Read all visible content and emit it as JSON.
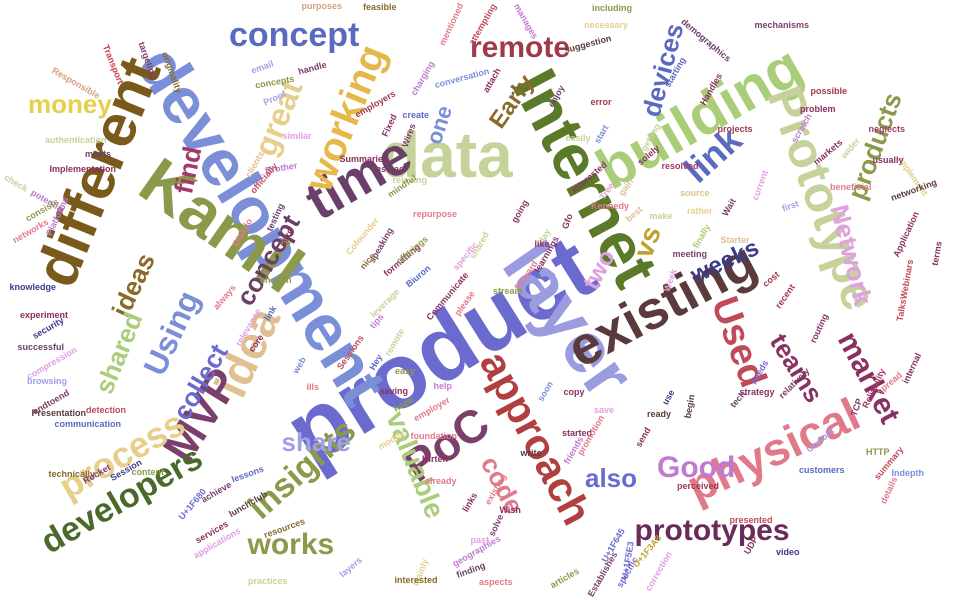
{
  "words": [
    {
      "text": "product",
      "color": "#6b6bcf"
    },
    {
      "text": "layer",
      "color": "#9b9be0"
    },
    {
      "text": "Internet",
      "color": "#5a7a2a"
    },
    {
      "text": "data",
      "color": "#c5d39a"
    },
    {
      "text": "development",
      "color": "#7a8fd8"
    },
    {
      "text": "Kamil",
      "color": "#8a9a4a"
    },
    {
      "text": "different",
      "color": "#7a5a1a"
    },
    {
      "text": "building",
      "color": "#aacd7a"
    },
    {
      "text": "Prototype",
      "color": "#c5d39a"
    },
    {
      "text": "time",
      "color": "#6a3f6a"
    },
    {
      "text": "existing",
      "color": "#5a3a3a"
    },
    {
      "text": "physical",
      "color": "#e07a8a"
    },
    {
      "text": "approach",
      "color": "#b04040"
    },
    {
      "text": "PoC",
      "color": "#7a3f6a"
    },
    {
      "text": "idea",
      "color": "#e0c090"
    },
    {
      "text": "MVP",
      "color": "#7a3f6a"
    },
    {
      "text": "developers",
      "color": "#4a6a2a"
    },
    {
      "text": "prototypes",
      "color": "#6a2a5a"
    },
    {
      "text": "process",
      "color": "#e6cf8a"
    },
    {
      "text": "market",
      "color": "#8a3060"
    },
    {
      "text": "Network",
      "color": "#e0a0e0"
    },
    {
      "text": "products",
      "color": "#8a9a4a"
    },
    {
      "text": "working",
      "color": "#e6b84a"
    },
    {
      "text": "concept",
      "color": "#5a6ac0"
    },
    {
      "text": "remote",
      "color": "#a03a4a"
    },
    {
      "text": "devices",
      "color": "#5a6ac0"
    },
    {
      "text": "link",
      "color": "#5a6ac0"
    },
    {
      "text": "Used",
      "color": "#c04a5a"
    },
    {
      "text": "Good",
      "color": "#c07ad0"
    },
    {
      "text": "insights",
      "color": "#8a9a4a"
    },
    {
      "text": "valuable",
      "color": "#aacd7a"
    },
    {
      "text": "code",
      "color": "#e07a8a"
    },
    {
      "text": "share",
      "color": "#a0a0e6"
    },
    {
      "text": "collect",
      "color": "#6b6bcf"
    },
    {
      "text": "Using",
      "color": "#7a8fd8"
    },
    {
      "text": "works",
      "color": "#8a9a4a"
    },
    {
      "text": "also",
      "color": "#6b6bcf"
    },
    {
      "text": "money",
      "color": "#e6cf4a"
    },
    {
      "text": "great",
      "color": "#e6cf8a"
    },
    {
      "text": "find",
      "color": "#a03a6a"
    },
    {
      "text": "ideas",
      "color": "#8a6a2a"
    },
    {
      "text": "shared",
      "color": "#aacd7a"
    },
    {
      "text": "weeks",
      "color": "#3a3a8a"
    },
    {
      "text": "teams",
      "color": "#8a3060"
    },
    {
      "text": "two",
      "color": "#e0a0e0"
    },
    {
      "text": "one",
      "color": "#7a8fd8"
    },
    {
      "text": "Early",
      "color": "#8a6a2a"
    },
    {
      "text": "vs",
      "color": "#c0a030"
    },
    {
      "text": "concept",
      "color": "#6a3f6a"
    },
    {
      "text": "Responsible",
      "color": "#d4a080"
    },
    {
      "text": "Transport",
      "color": "#c04040"
    },
    {
      "text": "targeting",
      "color": "#7a3f6a"
    },
    {
      "text": "originality",
      "color": "#8a6a2a"
    },
    {
      "text": "email",
      "color": "#a0a0e6"
    },
    {
      "text": "handle",
      "color": "#7a3f6a"
    },
    {
      "text": "concepts",
      "color": "#8a9a4a"
    },
    {
      "text": "Proof",
      "color": "#a0a0e6"
    },
    {
      "text": "purposes",
      "color": "#d4a080"
    },
    {
      "text": "feasible",
      "color": "#8a6a2a"
    },
    {
      "text": "mentioned",
      "color": "#e07a8a"
    },
    {
      "text": "attempting",
      "color": "#c04a5a"
    },
    {
      "text": "manages",
      "color": "#c07ad0"
    },
    {
      "text": "including",
      "color": "#8a9a4a"
    },
    {
      "text": "necessary",
      "color": "#e6cf8a"
    },
    {
      "text": "demographics",
      "color": "#6a3f6a"
    },
    {
      "text": "mechanisms",
      "color": "#7a3f6a"
    },
    {
      "text": "suggestion",
      "color": "#5a3a3a"
    },
    {
      "text": "conversation",
      "color": "#7a8fd8"
    },
    {
      "text": "charging",
      "color": "#c07ad0"
    },
    {
      "text": "attach",
      "color": "#8a3060"
    },
    {
      "text": "enjoy",
      "color": "#6a3f6a"
    },
    {
      "text": "starting",
      "color": "#5a6ac0"
    },
    {
      "text": "Handles",
      "color": "#8a3060"
    },
    {
      "text": "error",
      "color": "#a03a4a"
    },
    {
      "text": "authentication",
      "color": "#c5d39a"
    },
    {
      "text": "meets",
      "color": "#6a3f6a"
    },
    {
      "text": "Implementation",
      "color": "#8a3060"
    },
    {
      "text": "check",
      "color": "#c5d39a"
    },
    {
      "text": "potential",
      "color": "#c07ad0"
    },
    {
      "text": "Platforms",
      "color": "#c07ad0"
    },
    {
      "text": "consists",
      "color": "#8a9a4a"
    },
    {
      "text": "networks",
      "color": "#e07a8a"
    },
    {
      "text": "knowledge",
      "color": "#3a3a8a"
    },
    {
      "text": "experiment",
      "color": "#8a3060"
    },
    {
      "text": "security",
      "color": "#3a3a8a"
    },
    {
      "text": "successful",
      "color": "#6a3f6a"
    },
    {
      "text": "compression",
      "color": "#e0a0e0"
    },
    {
      "text": "browsing",
      "color": "#a0a0e6"
    },
    {
      "text": "endtoend",
      "color": "#7a3f6a"
    },
    {
      "text": "Presentation",
      "color": "#5a3a3a"
    },
    {
      "text": "communication",
      "color": "#5a6ac0"
    },
    {
      "text": "technically",
      "color": "#8a6a2a"
    },
    {
      "text": "Session",
      "color": "#3a3a8a"
    },
    {
      "text": "Rocket",
      "color": "#7a3f6a"
    },
    {
      "text": "content",
      "color": "#8a9a4a"
    },
    {
      "text": "detection",
      "color": "#c04a5a"
    },
    {
      "text": "lessons",
      "color": "#5a6ac0"
    },
    {
      "text": "achieve",
      "color": "#7a3f6a"
    },
    {
      "text": "lunchclub",
      "color": "#5a3a3a"
    },
    {
      "text": "resources",
      "color": "#8a6a2a"
    },
    {
      "text": "services",
      "color": "#8a3060"
    },
    {
      "text": "applications",
      "color": "#e0a0e0"
    },
    {
      "text": "practices",
      "color": "#c5d39a"
    },
    {
      "text": "layers",
      "color": "#a0a0e6"
    },
    {
      "text": "Mainly",
      "color": "#e6cf8a"
    },
    {
      "text": "geographies",
      "color": "#c07ad0"
    },
    {
      "text": "interested",
      "color": "#8a6a2a"
    },
    {
      "text": "finding",
      "color": "#6a3f6a"
    },
    {
      "text": "aspects",
      "color": "#e07a8a"
    },
    {
      "text": "articles",
      "color": "#8a9a4a"
    },
    {
      "text": "Establishes",
      "color": "#7a3f6a"
    },
    {
      "text": "correction",
      "color": "#e0a0e0"
    },
    {
      "text": "specific",
      "color": "#6b6bcf"
    },
    {
      "text": "video",
      "color": "#3a3a8a"
    },
    {
      "text": "UDP",
      "color": "#8a3060"
    },
    {
      "text": "presented",
      "color": "#c04a5a"
    },
    {
      "text": "perceived",
      "color": "#a03a4a"
    },
    {
      "text": "customers",
      "color": "#5a6ac0"
    },
    {
      "text": "HTTP",
      "color": "#8a9a4a"
    },
    {
      "text": "summary",
      "color": "#c04a5a"
    },
    {
      "text": "details",
      "color": "#e07a8a"
    },
    {
      "text": "Indepth",
      "color": "#7a8fd8"
    },
    {
      "text": "Unwork",
      "color": "#a0a0e6"
    },
    {
      "text": "TCP",
      "color": "#7a3f6a"
    },
    {
      "text": "Reliability",
      "color": "#a03a6a"
    },
    {
      "text": "spread",
      "color": "#e07a8a"
    },
    {
      "text": "internal",
      "color": "#8a3060"
    },
    {
      "text": "TalksWebinars",
      "color": "#c04a5a"
    },
    {
      "text": "routing",
      "color": "#8a3060"
    },
    {
      "text": "relatively",
      "color": "#7a3f6a"
    },
    {
      "text": "terms",
      "color": "#8a3060"
    },
    {
      "text": "Application",
      "color": "#8a3060"
    },
    {
      "text": "implement",
      "color": "#e6cf8a"
    },
    {
      "text": "networking",
      "color": "#5a3a3a"
    },
    {
      "text": "usually",
      "color": "#8a3060"
    },
    {
      "text": "neglects",
      "color": "#a03a6a"
    },
    {
      "text": "wider",
      "color": "#c5d39a"
    },
    {
      "text": "markets",
      "color": "#8a3060"
    },
    {
      "text": "beneficial",
      "color": "#e07a8a"
    },
    {
      "text": "problem",
      "color": "#8a3060"
    },
    {
      "text": "possible",
      "color": "#a03a4a"
    },
    {
      "text": "scratch",
      "color": "#c07ad0"
    },
    {
      "text": "projects",
      "color": "#a03a4a"
    },
    {
      "text": "Summaries",
      "color": "#8a3060"
    },
    {
      "text": "Fixed",
      "color": "#8a3060"
    },
    {
      "text": "Wires",
      "color": "#7a3f6a"
    },
    {
      "text": "create",
      "color": "#5a6ac0"
    },
    {
      "text": "employers",
      "color": "#a03a4a"
    },
    {
      "text": "relaxing",
      "color": "#c5d39a"
    },
    {
      "text": "mindful",
      "color": "#8a9a4a"
    },
    {
      "text": "Cofounder",
      "color": "#e6cf8a"
    },
    {
      "text": "speaking",
      "color": "#7a3f6a"
    },
    {
      "text": "nice",
      "color": "#8a6a2a"
    },
    {
      "text": "Instead",
      "color": "#7a3f6a"
    },
    {
      "text": "similar",
      "color": "#e0a0e0"
    },
    {
      "text": "Brother",
      "color": "#c07ad0"
    },
    {
      "text": "testing",
      "color": "#6a3f6a"
    },
    {
      "text": "intro",
      "color": "#8a3060"
    },
    {
      "text": "chosen",
      "color": "#8a9a4a"
    },
    {
      "text": "clients",
      "color": "#e0c090"
    },
    {
      "text": "officially",
      "color": "#c04a5a"
    },
    {
      "text": "Diakdo",
      "color": "#e07a8a"
    },
    {
      "text": "link",
      "color": "#5a6ac0"
    },
    {
      "text": "always",
      "color": "#e07a8a"
    },
    {
      "text": "relevance",
      "color": "#e0a0e0"
    },
    {
      "text": "core",
      "color": "#8a3060"
    },
    {
      "text": "web",
      "color": "#7a8fd8"
    },
    {
      "text": "ills",
      "color": "#e07a8a"
    },
    {
      "text": "Sessions",
      "color": "#c04a5a"
    },
    {
      "text": "Hey",
      "color": "#5a6ac0"
    },
    {
      "text": "easy",
      "color": "#8a9a4a"
    },
    {
      "text": "saving",
      "color": "#8a3060"
    },
    {
      "text": "help",
      "color": "#c07ad0"
    },
    {
      "text": "hope",
      "color": "#8a9a4a"
    },
    {
      "text": "employer",
      "color": "#e07a8a"
    },
    {
      "text": "modify",
      "color": "#e6cf8a"
    },
    {
      "text": "foundation",
      "color": "#e07a8a"
    },
    {
      "text": "Hirten",
      "color": "#8a3060"
    },
    {
      "text": "already",
      "color": "#e07a8a"
    },
    {
      "text": "existing",
      "color": "#e07a8a"
    },
    {
      "text": "links",
      "color": "#8a3060"
    },
    {
      "text": "Wish",
      "color": "#8a3060"
    },
    {
      "text": "solve",
      "color": "#7a3f6a"
    },
    {
      "text": "past",
      "color": "#e0a0e0"
    },
    {
      "text": "soon",
      "color": "#7a8fd8"
    },
    {
      "text": "write",
      "color": "#5a3a3a"
    },
    {
      "text": "copy",
      "color": "#8a3060"
    },
    {
      "text": "started",
      "color": "#8a3060"
    },
    {
      "text": "friends",
      "color": "#c07ad0"
    },
    {
      "text": "promotion",
      "color": "#e07a8a"
    },
    {
      "text": "save",
      "color": "#e0a0e0"
    },
    {
      "text": "send",
      "color": "#8a3060"
    },
    {
      "text": "begin",
      "color": "#5a3a3a"
    },
    {
      "text": "ready",
      "color": "#5a3a3a"
    },
    {
      "text": "use",
      "color": "#3a3a8a"
    },
    {
      "text": "tech",
      "color": "#6a3f6a"
    },
    {
      "text": "strategy",
      "color": "#8a3060"
    },
    {
      "text": "needs",
      "color": "#6b6bcf"
    },
    {
      "text": "recent",
      "color": "#a03a4a"
    },
    {
      "text": "cost",
      "color": "#a03a4a"
    },
    {
      "text": "gain",
      "color": "#e0c090"
    },
    {
      "text": "Gfo",
      "color": "#8a3060"
    },
    {
      "text": "day",
      "color": "#c5d39a"
    },
    {
      "text": "like",
      "color": "#8a3060"
    },
    {
      "text": "learnings",
      "color": "#8a3060"
    },
    {
      "text": "Week",
      "color": "#e0a0e0"
    },
    {
      "text": "meeting",
      "color": "#7a3f6a"
    },
    {
      "text": "finally",
      "color": "#aacd7a"
    },
    {
      "text": "best",
      "color": "#e0c090"
    },
    {
      "text": "make",
      "color": "#c5d39a"
    },
    {
      "text": "rather",
      "color": "#e6cf8a"
    },
    {
      "text": "source",
      "color": "#e0c090"
    },
    {
      "text": "resolved",
      "color": "#a03a6a"
    },
    {
      "text": "solely",
      "color": "#8a3060"
    },
    {
      "text": "getting",
      "color": "#c5d39a"
    },
    {
      "text": "start",
      "color": "#7a8fd8"
    },
    {
      "text": "easily",
      "color": "#c5d39a"
    },
    {
      "text": "interested",
      "color": "#8a3060"
    },
    {
      "text": "current",
      "color": "#e0a0e0"
    },
    {
      "text": "first",
      "color": "#a0a0e6"
    },
    {
      "text": "Wait",
      "color": "#7a3f6a"
    },
    {
      "text": "Starter",
      "color": "#e0c090"
    },
    {
      "text": "Kennedy",
      "color": "#e07a8a"
    },
    {
      "text": "Tree",
      "color": "#e0a0e0"
    },
    {
      "text": "going",
      "color": "#8a3060"
    },
    {
      "text": "shared",
      "color": "#c5d39a"
    },
    {
      "text": "forward",
      "color": "#e07a8a"
    },
    {
      "text": "stream",
      "color": "#8a9a4a"
    },
    {
      "text": "specific",
      "color": "#e0a0e0"
    },
    {
      "text": "Communicate",
      "color": "#8a3060"
    },
    {
      "text": "please",
      "color": "#e07a8a"
    },
    {
      "text": "leverage",
      "color": "#c5d39a"
    },
    {
      "text": "formatting",
      "color": "#8a3060"
    },
    {
      "text": "Biuron",
      "color": "#5a6ac0"
    },
    {
      "text": "repurpose",
      "color": "#e07a8a"
    },
    {
      "text": "offerings",
      "color": "#8a9a4a"
    },
    {
      "text": "tips",
      "color": "#c07ad0"
    },
    {
      "text": "remote",
      "color": "#c5d39a"
    },
    {
      "text": "U+1F645",
      "color": "#6b6bcf"
    },
    {
      "text": "U+1F5E3",
      "color": "#6b6bcf"
    },
    {
      "text": "U+1F3A8",
      "color": "#c0a030"
    },
    {
      "text": "U+1F680",
      "color": "#6b6bcf"
    }
  ]
}
